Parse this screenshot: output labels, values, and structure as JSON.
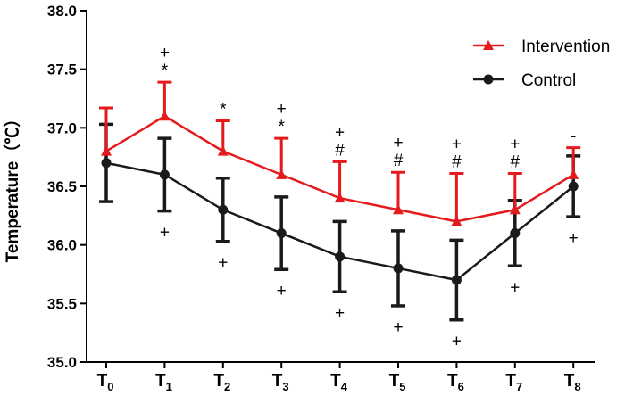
{
  "chart_data": {
    "type": "line",
    "title": "",
    "xlabel": "",
    "ylabel": "Temperature（℃）",
    "ylim": [
      35.0,
      38.0
    ],
    "yticks": [
      "35.0",
      "35.5",
      "36.0",
      "36.5",
      "37.0",
      "37.5",
      "38.0"
    ],
    "categories": [
      {
        "base": "T",
        "sub": "0"
      },
      {
        "base": "T",
        "sub": "1"
      },
      {
        "base": "T",
        "sub": "2"
      },
      {
        "base": "T",
        "sub": "3"
      },
      {
        "base": "T",
        "sub": "4"
      },
      {
        "base": "T",
        "sub": "5"
      },
      {
        "base": "T",
        "sub": "6"
      },
      {
        "base": "T",
        "sub": "7"
      },
      {
        "base": "T",
        "sub": "8"
      }
    ],
    "legend_position": "top-right",
    "series": [
      {
        "name": "Intervention",
        "color": "#e41a1c",
        "marker": "triangle",
        "error_direction": "up",
        "values": [
          36.8,
          37.1,
          36.8,
          36.6,
          36.4,
          36.3,
          36.2,
          36.3,
          36.6
        ],
        "errors": [
          0.37,
          0.29,
          0.26,
          0.31,
          0.31,
          0.32,
          0.41,
          0.31,
          0.23
        ]
      },
      {
        "name": "Control",
        "color": "#1a1a1a",
        "marker": "circle",
        "error_direction": "both",
        "values": [
          36.7,
          36.6,
          36.3,
          36.1,
          35.9,
          35.8,
          35.7,
          36.1,
          36.5
        ],
        "errors": [
          0.33,
          0.31,
          0.27,
          0.31,
          0.3,
          0.32,
          0.34,
          0.28,
          0.26
        ]
      }
    ],
    "annotations_above": [
      [],
      [
        "+",
        "*"
      ],
      [
        "*"
      ],
      [
        "+",
        "*"
      ],
      [
        "+",
        "#"
      ],
      [
        "+",
        "#"
      ],
      [
        "+",
        "#"
      ],
      [
        "+",
        "#"
      ],
      [
        "-"
      ]
    ],
    "annotations_below": [
      "",
      "+",
      "+",
      "+",
      "+",
      "+",
      "+",
      "+",
      "+"
    ]
  }
}
